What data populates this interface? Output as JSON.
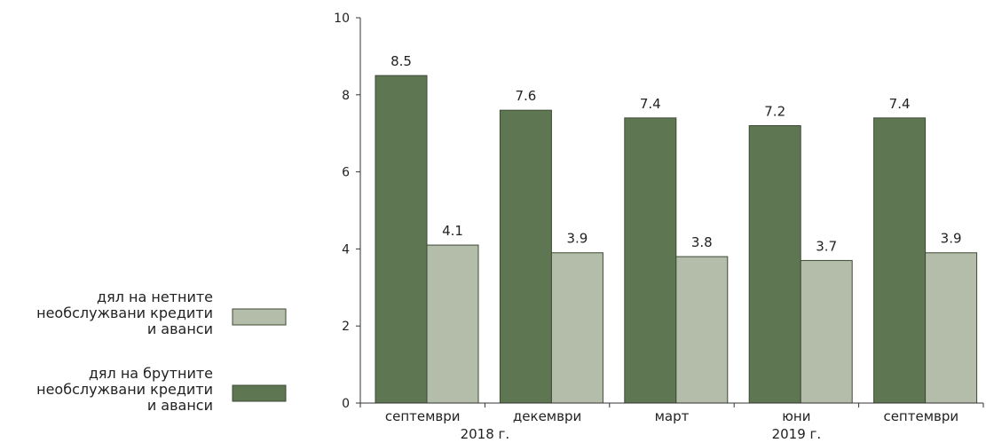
{
  "chart_data": {
    "type": "bar",
    "categories": [
      "септември",
      "декември",
      "март",
      "юни",
      "септември"
    ],
    "year_labels": [
      "2018 г.",
      "2019 г."
    ],
    "series": [
      {
        "name": "дял на брутните необслужвани кредити и аванси",
        "legend_lines": [
          "дял на брутните",
          "необслужвани кредити",
          "и аванси"
        ],
        "color": "#5e7752",
        "values": [
          8.5,
          7.6,
          7.4,
          7.2,
          7.4
        ]
      },
      {
        "name": "дял на нетните необслужвани кредити и аванси",
        "legend_lines": [
          "дял на нетните",
          "необслужвани кредити",
          "и аванси"
        ],
        "color": "#b4bda9",
        "values": [
          4.1,
          3.9,
          3.8,
          3.7,
          3.9
        ]
      }
    ],
    "value_labels": [
      [
        "8.5",
        "7.6",
        "7.4",
        "7.2",
        "7.4"
      ],
      [
        "4.1",
        "3.9",
        "3.8",
        "3.7",
        "3.9"
      ]
    ],
    "yticks": [
      "0",
      "2",
      "4",
      "6",
      "8",
      "10"
    ],
    "ylim": [
      0,
      10
    ],
    "grid": false,
    "legend_position": "left"
  }
}
